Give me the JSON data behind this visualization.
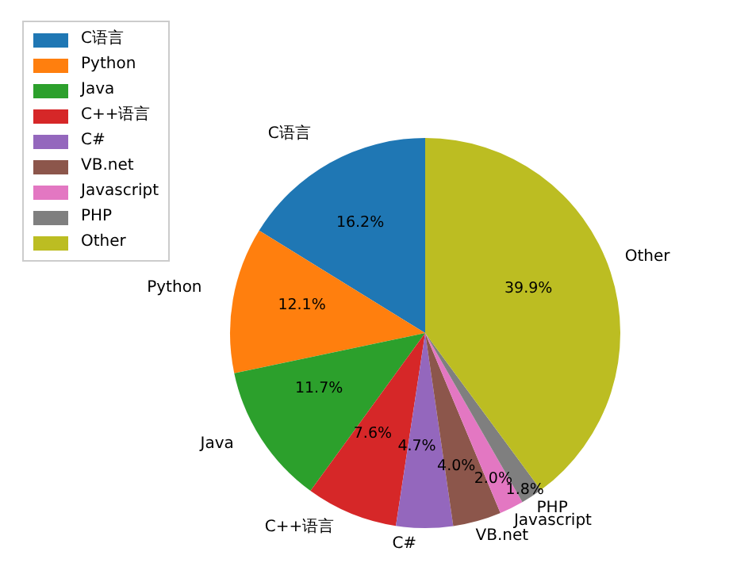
{
  "chart_data": {
    "type": "pie",
    "categories": [
      "C语言",
      "Python",
      "Java",
      "C++语言",
      "C#",
      "VB.net",
      "Javascript",
      "PHP",
      "Other"
    ],
    "values": [
      16.2,
      12.1,
      11.7,
      7.6,
      4.7,
      4.0,
      2.0,
      1.8,
      39.9
    ],
    "colors": [
      "#1f77b4",
      "#ff7f0e",
      "#2ca02c",
      "#d62728",
      "#9467bd",
      "#8c564b",
      "#e377c2",
      "#7f7f7f",
      "#bcbd22"
    ],
    "value_labels": [
      "16.2%",
      "12.1%",
      "11.7%",
      "7.6%",
      "4.7%",
      "4.0%",
      "2.0%",
      "1.8%",
      "39.9%"
    ],
    "legend": "top left"
  }
}
